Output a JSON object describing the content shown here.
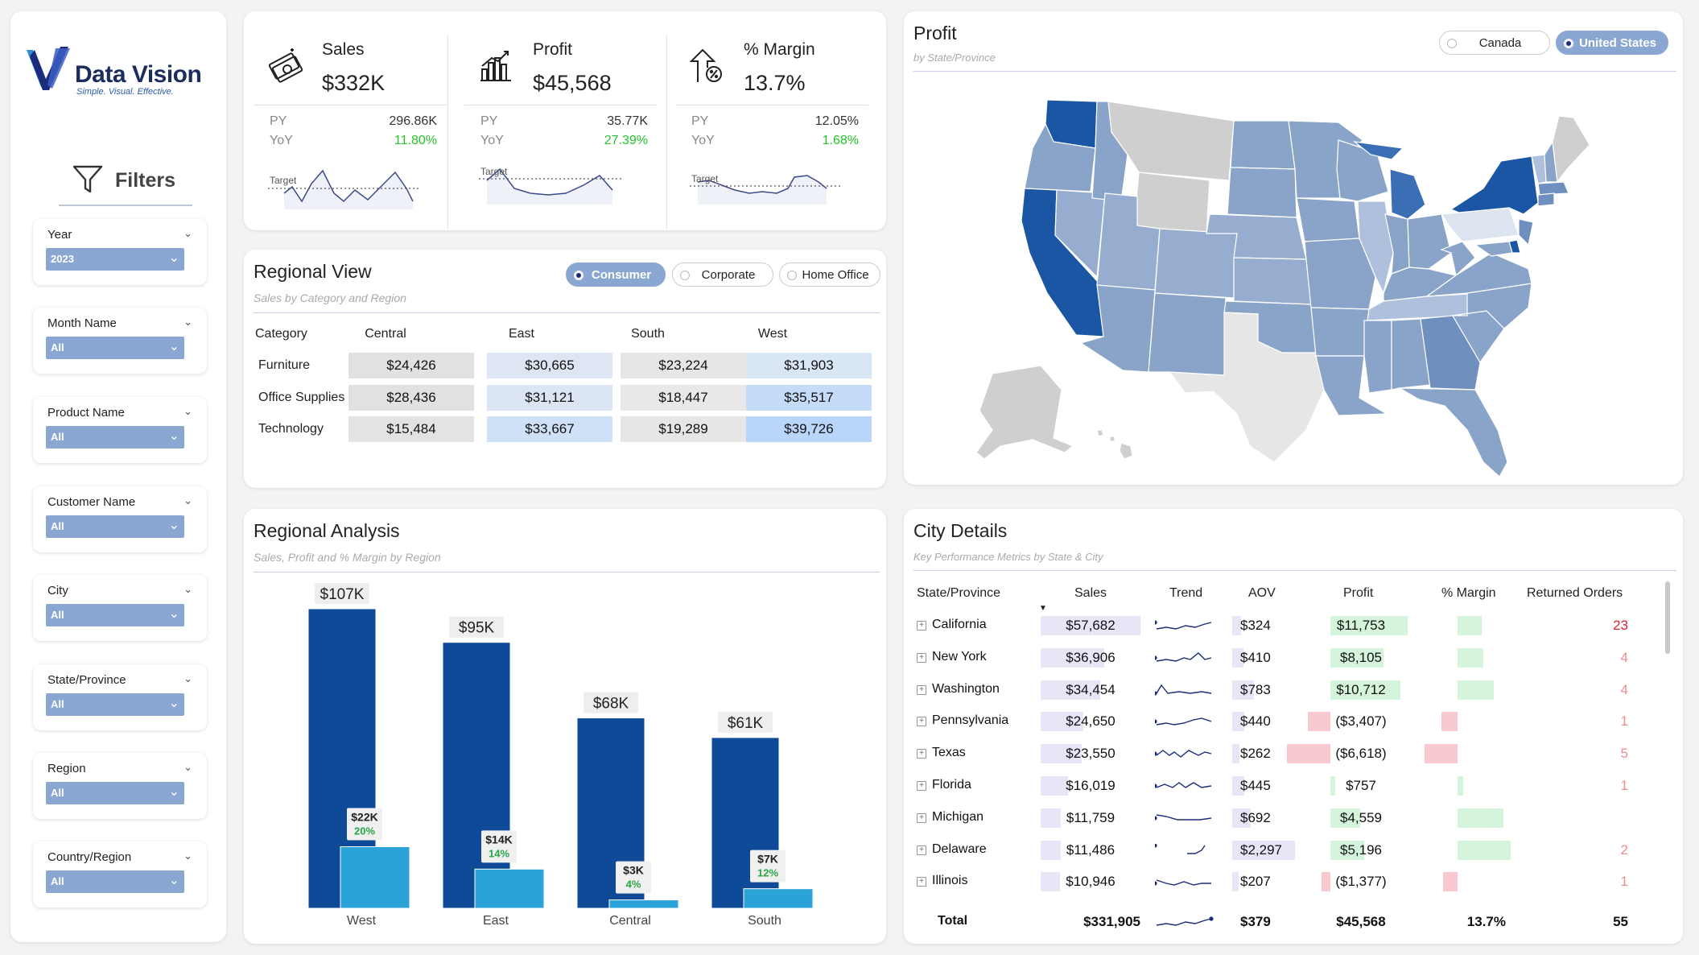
{
  "brand": {
    "name": "Data Vision",
    "tagline": "Simple. Visual. Effective."
  },
  "filters": {
    "title": "Filters",
    "slicers": [
      {
        "label": "Year",
        "value": "2023"
      },
      {
        "label": "Month Name",
        "value": "All"
      },
      {
        "label": "Product Name",
        "value": "All"
      },
      {
        "label": "Customer Name",
        "value": "All"
      },
      {
        "label": "City",
        "value": "All"
      },
      {
        "label": "State/Province",
        "value": "All"
      },
      {
        "label": "Region",
        "value": "All"
      },
      {
        "label": "Country/Region",
        "value": "All"
      }
    ]
  },
  "kpis": [
    {
      "name": "Sales",
      "value": "$332K",
      "py_label": "PY",
      "py": "296.86K",
      "yoy_label": "YoY",
      "yoy": "11.80%",
      "target_label": "Target",
      "icon": "money-icon"
    },
    {
      "name": "Profit",
      "value": "$45,568",
      "py_label": "PY",
      "py": "35.77K",
      "yoy_label": "YoY",
      "yoy": "27.39%",
      "target_label": "Target",
      "icon": "bar-chart-icon"
    },
    {
      "name": "% Margin",
      "value": "13.7%",
      "py_label": "PY",
      "py": "12.05%",
      "yoy_label": "YoY",
      "yoy": "1.68%",
      "target_label": "Target",
      "icon": "percent-growth-icon"
    }
  ],
  "regional_view": {
    "title": "Regional View",
    "subtitle": "Sales by Category and Region",
    "segments": [
      {
        "label": "Consumer",
        "selected": true
      },
      {
        "label": "Corporate",
        "selected": false
      },
      {
        "label": "Home Office",
        "selected": false
      }
    ],
    "columns": [
      "Category",
      "Central",
      "East",
      "South",
      "West"
    ],
    "rows": [
      {
        "category": "Furniture",
        "values": [
          "$24,426",
          "$30,665",
          "$23,224",
          "$31,903"
        ]
      },
      {
        "category": "Office Supplies",
        "values": [
          "$28,436",
          "$31,121",
          "$18,447",
          "$35,517"
        ]
      },
      {
        "category": "Technology",
        "values": [
          "$15,484",
          "$33,667",
          "$19,289",
          "$39,726"
        ]
      }
    ],
    "cell_colors": [
      [
        "#e1e1e1",
        "#dde6f2",
        "#e6e6e6",
        "#d9e6f6"
      ],
      [
        "#e1e1e1",
        "#dbe5f3",
        "#e8e8e8",
        "#c5dcf8"
      ],
      [
        "#e3e3e3",
        "#cfe1f7",
        "#e6e6e6",
        "#bad5fa"
      ]
    ]
  },
  "regional_analysis": {
    "title": "Regional Analysis",
    "subtitle": "Sales, Profit and % Margin by Region",
    "chart_data": {
      "type": "bar",
      "categories": [
        "West",
        "East",
        "Central",
        "South"
      ],
      "series": [
        {
          "name": "Sales",
          "values": [
            107,
            95,
            68,
            61
          ],
          "labels": [
            "$107K",
            "$95K",
            "$68K",
            "$61K"
          ],
          "color": "#0e4a97"
        },
        {
          "name": "Profit",
          "values": [
            22,
            14,
            3,
            7
          ],
          "labels": [
            "$22K",
            "$14K",
            "$3K",
            "$7K"
          ],
          "margin_labels": [
            "20%",
            "14%",
            "4%",
            "12%"
          ],
          "color": "#2ca3d8"
        }
      ]
    }
  },
  "profit_map": {
    "title": "Profit",
    "subtitle": "by State/Province",
    "countries": [
      {
        "label": "Canada",
        "selected": false
      },
      {
        "label": "United States",
        "selected": true
      }
    ]
  },
  "city_details": {
    "title": "City Details",
    "subtitle": "Key Performance Metrics by State & City",
    "columns": [
      "State/Province",
      "Sales",
      "Trend",
      "AOV",
      "Profit",
      "% Margin",
      "Returned Orders"
    ],
    "rows": [
      {
        "state": "California",
        "sales": "$57,682",
        "aov": "$324",
        "profit": "$11,753",
        "returned": "23",
        "sales_v": 57682,
        "aov_v": 324,
        "profit_v": 11753,
        "margin_v": 20.4
      },
      {
        "state": "New York",
        "sales": "$36,906",
        "aov": "$410",
        "profit": "$8,105",
        "returned": "4",
        "sales_v": 36906,
        "aov_v": 410,
        "profit_v": 8105,
        "margin_v": 22.0
      },
      {
        "state": "Washington",
        "sales": "$34,454",
        "aov": "$783",
        "profit": "$10,712",
        "returned": "4",
        "sales_v": 34454,
        "aov_v": 783,
        "profit_v": 10712,
        "margin_v": 31.1
      },
      {
        "state": "Pennsylvania",
        "sales": "$24,650",
        "aov": "$440",
        "profit": "($3,407)",
        "returned": "1",
        "sales_v": 24650,
        "aov_v": 440,
        "profit_v": -3407,
        "margin_v": -13.8
      },
      {
        "state": "Texas",
        "sales": "$23,550",
        "aov": "$262",
        "profit": "($6,618)",
        "returned": "5",
        "sales_v": 23550,
        "aov_v": 262,
        "profit_v": -6618,
        "margin_v": -28.1
      },
      {
        "state": "Florida",
        "sales": "$16,019",
        "aov": "$445",
        "profit": "$757",
        "returned": "1",
        "sales_v": 16019,
        "aov_v": 445,
        "profit_v": 757,
        "margin_v": 4.7
      },
      {
        "state": "Michigan",
        "sales": "$11,759",
        "aov": "$692",
        "profit": "$4,559",
        "returned": "",
        "sales_v": 11759,
        "aov_v": 692,
        "profit_v": 4559,
        "margin_v": 38.8
      },
      {
        "state": "Delaware",
        "sales": "$11,486",
        "aov": "$2,297",
        "profit": "$5,196",
        "returned": "2",
        "sales_v": 11486,
        "aov_v": 2297,
        "profit_v": 5196,
        "margin_v": 45.2
      },
      {
        "state": "Illinois",
        "sales": "$10,946",
        "aov": "$207",
        "profit": "($1,377)",
        "returned": "1",
        "sales_v": 10946,
        "aov_v": 207,
        "profit_v": -1377,
        "margin_v": -12.6
      }
    ],
    "total": {
      "label": "Total",
      "sales": "$331,905",
      "aov": "$379",
      "profit": "$45,568",
      "margin": "13.7%",
      "returned": "55"
    }
  }
}
